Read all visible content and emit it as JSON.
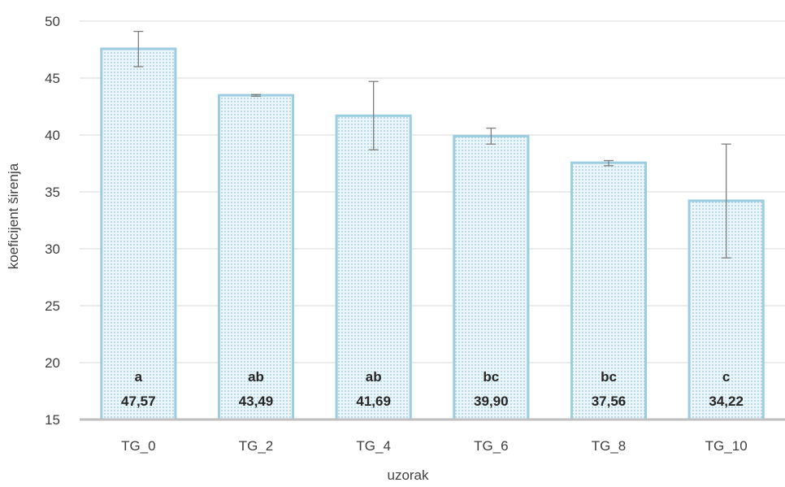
{
  "chart_data": {
    "type": "bar",
    "xlabel": "uzorak",
    "ylabel": "koeficijent širenja",
    "ylim": [
      15,
      50
    ],
    "yticks": [
      15,
      20,
      25,
      30,
      35,
      40,
      45,
      50
    ],
    "grid": true,
    "categories": [
      "TG_0",
      "TG_2",
      "TG_4",
      "TG_6",
      "TG_8",
      "TG_10"
    ],
    "values": [
      47.57,
      43.49,
      41.69,
      39.9,
      37.56,
      34.22
    ],
    "value_labels": [
      "47,57",
      "43,49",
      "41,69",
      "39,90",
      "37,56",
      "34,22"
    ],
    "significance_letters": [
      "a",
      "ab",
      "ab",
      "bc",
      "bc",
      "c"
    ],
    "error_bars": [
      {
        "low": 46.0,
        "high": 49.1
      },
      {
        "low": 43.4,
        "high": 43.55
      },
      {
        "low": 38.7,
        "high": 44.7
      },
      {
        "low": 39.2,
        "high": 40.6
      },
      {
        "low": 37.3,
        "high": 37.75
      },
      {
        "low": 29.2,
        "high": 39.2
      }
    ],
    "colors": {
      "bar_fill": "#eaf6fb",
      "bar_dots": "#7fb2c9",
      "bar_edge": "#9ccde0",
      "gridline": "#d9d9d9",
      "axis_line": "#bfbfbf",
      "error_bar": "#7f7f7f"
    }
  }
}
